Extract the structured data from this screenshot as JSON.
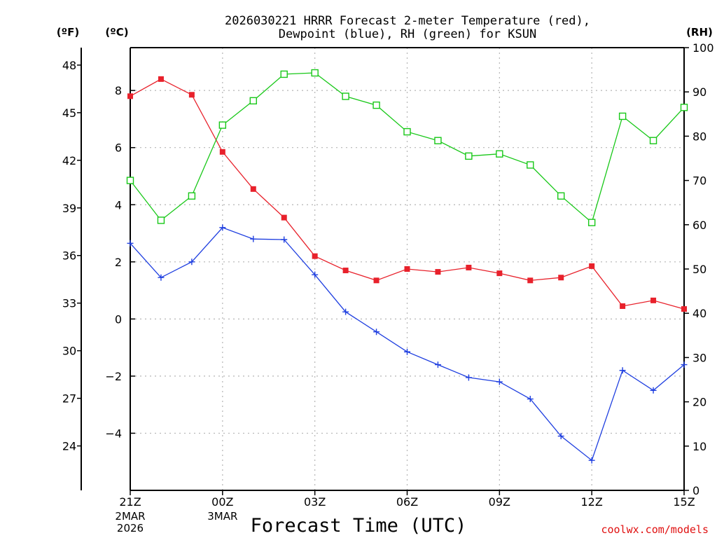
{
  "chart_data": {
    "type": "line",
    "title": [
      "2026030221 HRRR Forecast 2-meter Temperature (red),",
      "Dewpoint (blue), RH (green) for KSUN"
    ],
    "xlabel": "Forecast Time (UTC)",
    "credit": "coolwx.com/models",
    "units": {
      "fahrenheit": "(ºF)",
      "celsius": "(ºC)",
      "rh": "(RH)"
    },
    "x_hours": [
      0,
      1,
      2,
      3,
      4,
      5,
      6,
      7,
      8,
      9,
      10,
      11,
      12,
      13,
      14,
      15,
      16,
      17,
      18
    ],
    "x_ticks": [
      {
        "hour": 0,
        "label": "21Z",
        "sub": [
          "2MAR",
          "2026"
        ]
      },
      {
        "hour": 3,
        "label": "00Z",
        "sub": [
          "3MAR"
        ]
      },
      {
        "hour": 6,
        "label": "03Z",
        "sub": []
      },
      {
        "hour": 9,
        "label": "06Z",
        "sub": []
      },
      {
        "hour": 12,
        "label": "09Z",
        "sub": []
      },
      {
        "hour": 15,
        "label": "12Z",
        "sub": []
      },
      {
        "hour": 18,
        "label": "15Z",
        "sub": []
      }
    ],
    "celsius_axis": {
      "range": [
        -6.0,
        9.5
      ],
      "ticks": [
        -4,
        -2,
        0,
        2,
        4,
        6,
        8
      ],
      "tick_labels": [
        "−4",
        "−2",
        "0",
        "2",
        "4",
        "6",
        "8"
      ]
    },
    "fahrenheit_axis": {
      "ticks": [
        24,
        27,
        30,
        33,
        36,
        39,
        42,
        45,
        48
      ]
    },
    "rh_axis": {
      "range": [
        0,
        100
      ],
      "ticks": [
        0,
        10,
        20,
        30,
        40,
        50,
        60,
        70,
        80,
        90,
        100
      ]
    },
    "series": [
      {
        "name": "Temperature",
        "axis": "celsius",
        "color": "#e8212b",
        "marker": "filled-square",
        "values": [
          7.8,
          8.4,
          7.85,
          5.85,
          4.55,
          3.55,
          2.2,
          1.7,
          1.35,
          1.75,
          1.65,
          1.8,
          1.6,
          1.35,
          1.45,
          1.85,
          0.45,
          0.65,
          0.35
        ]
      },
      {
        "name": "Dewpoint",
        "axis": "celsius",
        "color": "#1f3fe0",
        "marker": "plus",
        "values": [
          2.65,
          1.45,
          2.0,
          3.2,
          2.8,
          2.78,
          1.55,
          0.25,
          -0.45,
          -1.15,
          -1.6,
          -2.05,
          -2.2,
          -2.8,
          -4.1,
          -4.95,
          -1.8,
          -2.5,
          -1.6
        ]
      },
      {
        "name": "RH",
        "axis": "rh",
        "color": "#18c818",
        "marker": "open-square",
        "values": [
          70,
          61,
          66.5,
          82.5,
          88,
          94,
          94.3,
          89,
          87,
          81,
          79,
          75.5,
          76,
          73.5,
          66.5,
          60.5,
          84.5,
          79,
          86.5
        ]
      }
    ]
  }
}
